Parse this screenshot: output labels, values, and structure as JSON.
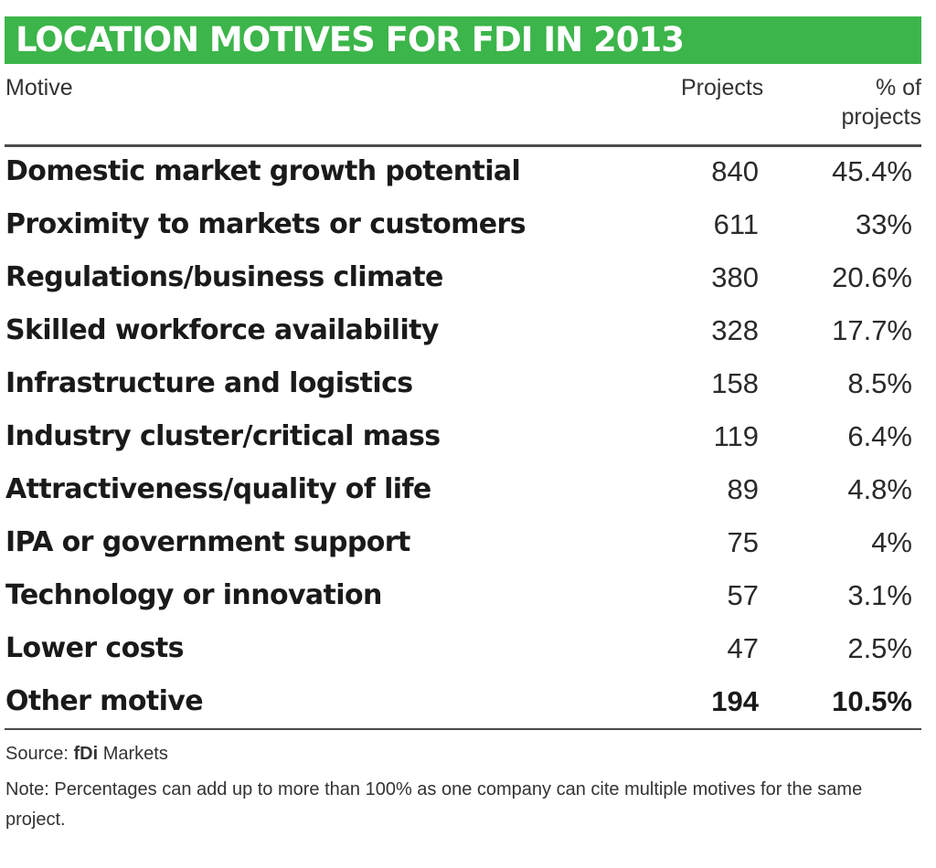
{
  "chart_data": {
    "type": "table",
    "title": "LOCATION MOTIVES FOR FDI IN 2013",
    "columns": [
      "Motive",
      "Projects",
      "% of projects"
    ],
    "rows": [
      {
        "motive": "Domestic market growth potential",
        "projects": "840",
        "pct": "45.4%",
        "bold": false
      },
      {
        "motive": "Proximity to markets or customers",
        "projects": "611",
        "pct": "33%",
        "bold": false
      },
      {
        "motive": "Regulations/business climate",
        "projects": "380",
        "pct": "20.6%",
        "bold": false
      },
      {
        "motive": "Skilled workforce availability",
        "projects": "328",
        "pct": "17.7%",
        "bold": false
      },
      {
        "motive": "Infrastructure and logistics",
        "projects": "158",
        "pct": "8.5%",
        "bold": false
      },
      {
        "motive": "Industry cluster/critical mass",
        "projects": "119",
        "pct": "6.4%",
        "bold": false
      },
      {
        "motive": "Attractiveness/quality of life",
        "projects": "89",
        "pct": "4.8%",
        "bold": false
      },
      {
        "motive": "IPA or government support",
        "projects": "75",
        "pct": "4%",
        "bold": false
      },
      {
        "motive": "Technology or innovation",
        "projects": "57",
        "pct": "3.1%",
        "bold": false
      },
      {
        "motive": "Lower costs",
        "projects": "47",
        "pct": "2.5%",
        "bold": false
      },
      {
        "motive": "Other motive",
        "projects": "194",
        "pct": "10.5%",
        "bold": true
      }
    ],
    "source_label": "Source:",
    "source_name": "fDi",
    "source_rest": "Markets",
    "note": "Note: Percentages can add up to more than 100% as one company can cite multiple motives for the same project.",
    "accent_color": "#3cb54a"
  }
}
